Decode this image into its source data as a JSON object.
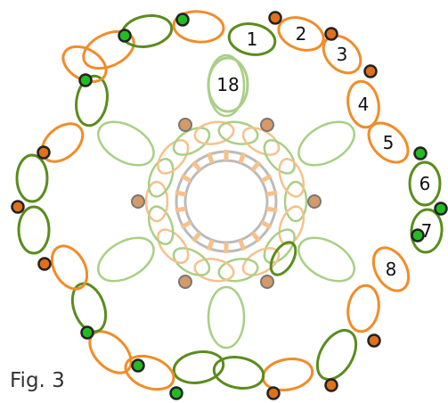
{
  "caption": "Fig. 3",
  "colors": {
    "orange": "#f28c28",
    "green": "#5b8c1e",
    "orange_light": "#f6c18c",
    "green_light": "#a9cf86",
    "bead_green": "#22bb22",
    "bead_orange": "#e0701a",
    "bead_faded": "#d59a6a",
    "ring": "#bbbbbb",
    "bead_outline": "#222222"
  },
  "numbered_loops": [
    {
      "label": "1"
    },
    {
      "label": "2"
    },
    {
      "label": "3"
    },
    {
      "label": "4"
    },
    {
      "label": "5"
    },
    {
      "label": "6"
    },
    {
      "label": "7"
    },
    {
      "label": "8"
    },
    {
      "label": "18"
    }
  ]
}
